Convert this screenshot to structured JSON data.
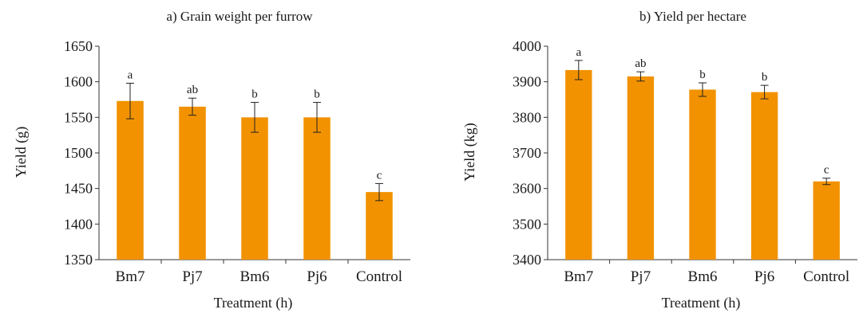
{
  "chart_data": [
    {
      "type": "bar",
      "title": "a) Grain weight per furrow",
      "xlabel": "Treatment (h)",
      "ylabel": "Yield (g)",
      "categories": [
        "Bm7",
        "Pj7",
        "Bm6",
        "Pj6",
        "Control"
      ],
      "values": [
        1573,
        1565,
        1550,
        1550,
        1445
      ],
      "errors": [
        25,
        12,
        21,
        21,
        12
      ],
      "significance": [
        "a",
        "ab",
        "b",
        "b",
        "c"
      ],
      "ylim": [
        1350,
        1650
      ],
      "yticks": [
        1350,
        1400,
        1450,
        1500,
        1550,
        1600,
        1650
      ],
      "grid": false,
      "bar_color": "#f29200"
    },
    {
      "type": "bar",
      "title": "b) Yield per hectare",
      "xlabel": "Treatment (h)",
      "ylabel": "Yield (kg)",
      "categories": [
        "Bm7",
        "Pj7",
        "Bm6",
        "Pj6",
        "Control"
      ],
      "values": [
        3933,
        3915,
        3878,
        3871,
        3620
      ],
      "errors": [
        27,
        13,
        19,
        19,
        9
      ],
      "significance": [
        "a",
        "ab",
        "b",
        "b",
        "c"
      ],
      "ylim": [
        3400,
        4000
      ],
      "yticks": [
        3400,
        3500,
        3600,
        3700,
        3800,
        3900,
        4000
      ],
      "grid": false,
      "bar_color": "#f29200"
    }
  ]
}
